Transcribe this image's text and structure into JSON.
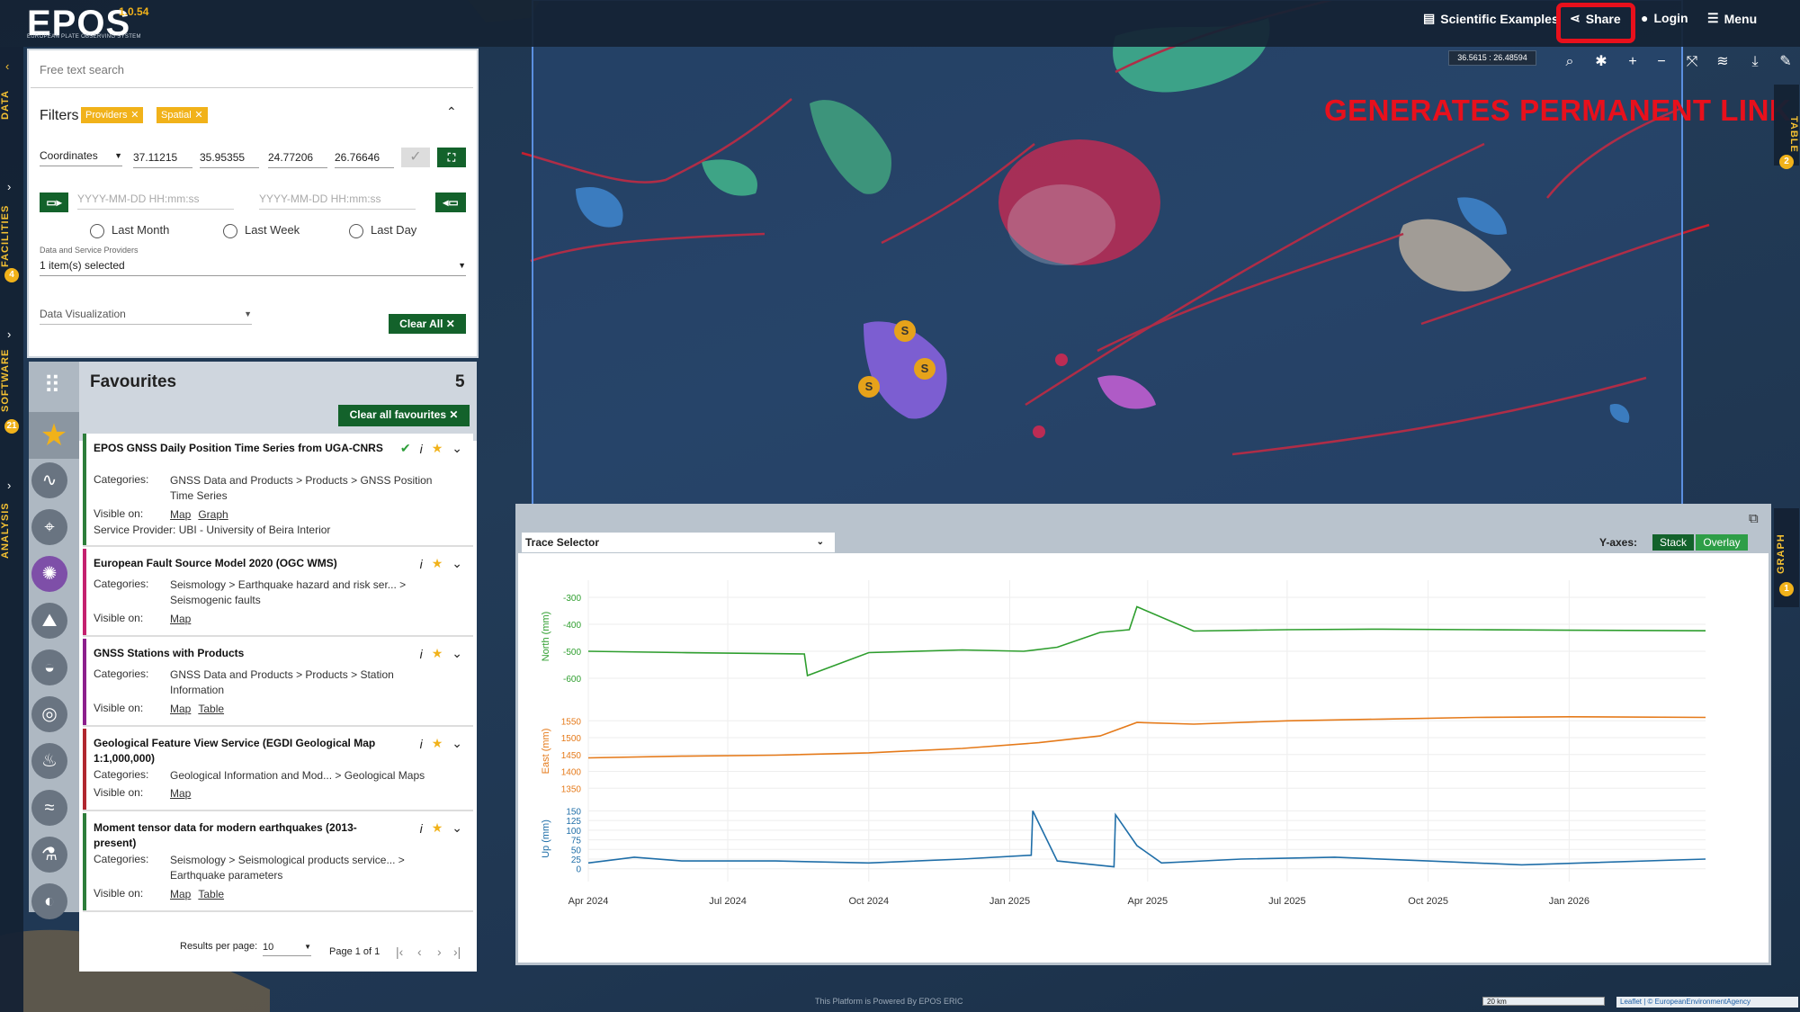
{
  "app": {
    "logo": "EPOS",
    "logo_subtitle": "EUROPEAN PLATE OBSERVING SYSTEM",
    "version": "1.0.54"
  },
  "topnav": {
    "examples": "Scientific Examples",
    "share": "Share",
    "login": "Login",
    "menu": "Menu"
  },
  "map": {
    "coords": "36.5615 : 26.48594",
    "annotation": "GENERATES PERMANENT LINK",
    "footer": "This Platform is Powered By EPOS ERIC",
    "scale": "20 km",
    "attribution": "Leaflet | © EuropeanEnvironmentAgency",
    "station_marker": "S"
  },
  "rail": {
    "data": "DATA",
    "facilities": "FACILITIES",
    "facilities_badge": "4",
    "software": "SOFTWARE",
    "software_badge": "21",
    "analysis": "ANALYSIS",
    "table": "TABLE",
    "table_badge": "2",
    "graph": "GRAPH",
    "graph_badge": "1"
  },
  "search": {
    "placeholder": "Free text search"
  },
  "filters": {
    "label": "Filters",
    "chips": [
      "Providers",
      "Spatial"
    ],
    "coord_type": "Coordinates",
    "coords": [
      "37.11215",
      "35.95355",
      "24.77206",
      "26.76646"
    ],
    "date_start_placeholder": "YYYY-MM-DD HH:mm:ss",
    "date_end_placeholder": "YYYY-MM-DD HH:mm:ss",
    "radios": [
      "Last Month",
      "Last Week",
      "Last Day"
    ],
    "providers_label": "Data and Service Providers",
    "providers_value": "1 item(s) selected",
    "visualization_placeholder": "Data Visualization",
    "clear_all": "Clear All"
  },
  "favourites": {
    "title": "Favourites",
    "count": "5",
    "clear_button": "Clear all favourites",
    "items": [
      {
        "title": "EPOS GNSS Daily Position Time Series from UGA-CNRS",
        "categories": "GNSS Data and Products > Products > GNSS Position Time Series",
        "visible_on": [
          "Map",
          "Graph"
        ],
        "provider": "Service Provider: UBI - University of Beira Interior",
        "color": "#2d7d3a"
      },
      {
        "title": "European Fault Source Model 2020 (OGC WMS)",
        "categories": "Seismology > Earthquake hazard and risk ser... > Seismogenic faults",
        "visible_on": [
          "Map"
        ],
        "color": "#c4216f"
      },
      {
        "title": "GNSS Stations with Products",
        "categories": "GNSS Data and Products > Products > Station Information",
        "visible_on": [
          "Map",
          "Table"
        ],
        "color": "#8c1f8c"
      },
      {
        "title": "Geological Feature View Service (EGDI Geological Map 1:1,000,000)",
        "categories": "Geological Information and Mod... > Geological Maps",
        "visible_on": [
          "Map"
        ],
        "color": "#b0272f"
      },
      {
        "title": "Moment tensor data for modern earthquakes (2013-present)",
        "categories": "Seismology > Seismological products service... > Earthquake parameters",
        "visible_on": [
          "Map",
          "Table"
        ],
        "color": "#2d7d3a"
      }
    ],
    "categories_label": "Categories:",
    "visible_label": "Visible on:",
    "results_label": "Results per page:",
    "results_value": "10",
    "page_label": "Page 1 of 1"
  },
  "graph": {
    "trace_selector": "Trace Selector",
    "yaxes_label": "Y-axes:",
    "stack": "Stack",
    "overlay": "Overlay"
  },
  "chart_data": {
    "type": "line",
    "x_ticks": [
      "Apr 2024",
      "Jul 2024",
      "Oct 2024",
      "Jan 2025",
      "Apr 2025",
      "Jul 2025",
      "Oct 2025",
      "Jan 2026"
    ],
    "x_range": [
      "2024-04-01",
      "2026-03-31"
    ],
    "series": [
      {
        "name": "North (mm)",
        "color": "#2e9e2e",
        "ylim": [
          -620,
          -270
        ],
        "ticks": [
          -300,
          -400,
          -500,
          -600
        ],
        "x": [
          "2024-04-01",
          "2024-06-01",
          "2024-08-20",
          "2024-08-22",
          "2024-10-01",
          "2024-12-01",
          "2025-01-10",
          "2025-02-01",
          "2025-03-01",
          "2025-03-20",
          "2025-03-25",
          "2025-05-01",
          "2025-07-01",
          "2025-09-01",
          "2025-11-01",
          "2026-01-01",
          "2026-03-31"
        ],
        "values": [
          -500,
          -505,
          -510,
          -590,
          -505,
          -495,
          -500,
          -485,
          -430,
          -420,
          -335,
          -425,
          -420,
          -418,
          -420,
          -422,
          -424
        ]
      },
      {
        "name": "East (mm)",
        "color": "#e57a1a",
        "ylim": [
          1340,
          1580
        ],
        "ticks": [
          1350,
          1400,
          1450,
          1500,
          1550
        ],
        "x": [
          "2024-04-01",
          "2024-06-01",
          "2024-08-01",
          "2024-10-01",
          "2024-12-01",
          "2025-01-20",
          "2025-03-01",
          "2025-03-25",
          "2025-05-01",
          "2025-07-01",
          "2025-09-01",
          "2025-11-01",
          "2026-01-01",
          "2026-03-31"
        ],
        "values": [
          1440,
          1445,
          1448,
          1455,
          1468,
          1485,
          1505,
          1545,
          1540,
          1550,
          1555,
          1560,
          1562,
          1560
        ]
      },
      {
        "name": "Up (mm)",
        "color": "#1f6ea8",
        "ylim": [
          -10,
          165
        ],
        "ticks": [
          0,
          25,
          50,
          75,
          100,
          125,
          150
        ],
        "x": [
          "2024-04-01",
          "2024-05-01",
          "2024-06-01",
          "2024-08-01",
          "2024-10-01",
          "2024-12-01",
          "2025-01-15",
          "2025-01-16",
          "2025-02-01",
          "2025-03-10",
          "2025-03-11",
          "2025-03-25",
          "2025-04-10",
          "2025-06-01",
          "2025-08-01",
          "2025-10-01",
          "2025-12-01",
          "2026-03-31"
        ],
        "values": [
          15,
          30,
          20,
          20,
          15,
          25,
          35,
          150,
          20,
          5,
          140,
          60,
          15,
          25,
          30,
          20,
          10,
          25
        ]
      }
    ]
  }
}
